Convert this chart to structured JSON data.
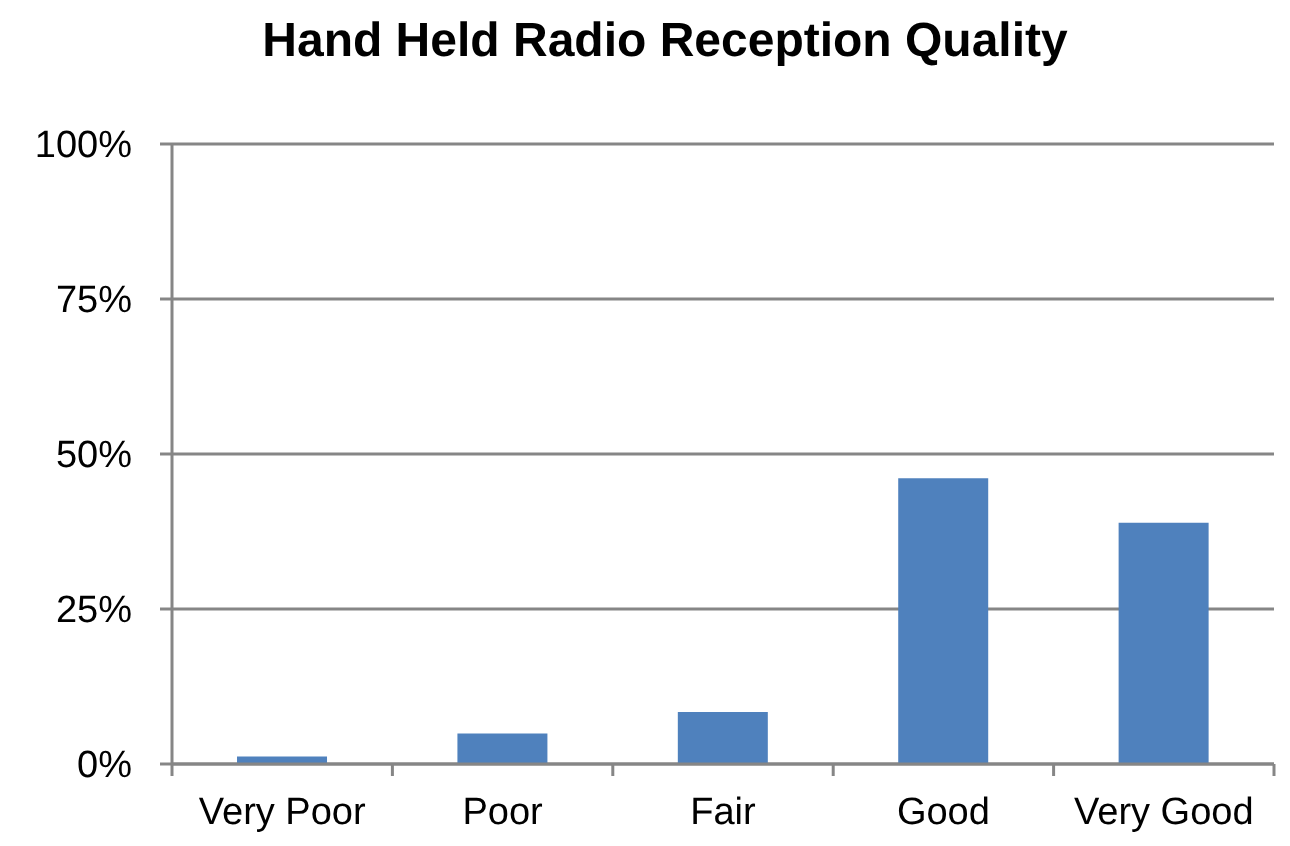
{
  "chart_data": {
    "type": "bar",
    "title": "Hand Held Radio Reception Quality",
    "categories": [
      "Very Poor",
      "Poor",
      "Fair",
      "Good",
      "Very Good"
    ],
    "values": [
      1.2,
      4.9,
      8.4,
      46.1,
      38.9
    ],
    "color": "#4f81bd",
    "ylim": [
      0,
      100
    ],
    "yticks": [
      {
        "value": 0,
        "label": "0%"
      },
      {
        "value": 25,
        "label": "25%"
      },
      {
        "value": 50,
        "label": "50%"
      },
      {
        "value": 75,
        "label": "75%"
      },
      {
        "value": 100,
        "label": "100%"
      }
    ],
    "grid": "y"
  }
}
